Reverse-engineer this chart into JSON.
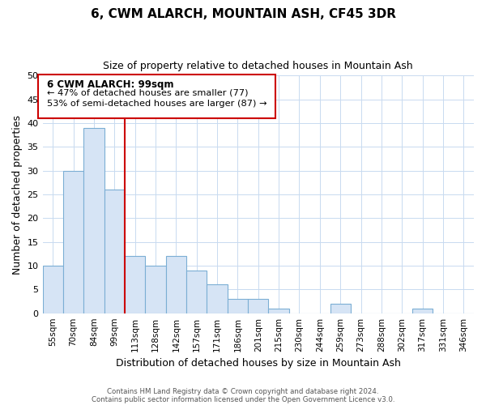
{
  "title": "6, CWM ALARCH, MOUNTAIN ASH, CF45 3DR",
  "subtitle": "Size of property relative to detached houses in Mountain Ash",
  "xlabel": "Distribution of detached houses by size in Mountain Ash",
  "ylabel": "Number of detached properties",
  "bin_labels": [
    "55sqm",
    "70sqm",
    "84sqm",
    "99sqm",
    "113sqm",
    "128sqm",
    "142sqm",
    "157sqm",
    "171sqm",
    "186sqm",
    "201sqm",
    "215sqm",
    "230sqm",
    "244sqm",
    "259sqm",
    "273sqm",
    "288sqm",
    "302sqm",
    "317sqm",
    "331sqm",
    "346sqm"
  ],
  "bar_heights": [
    10,
    30,
    39,
    26,
    12,
    10,
    12,
    9,
    6,
    3,
    3,
    1,
    0,
    0,
    2,
    0,
    0,
    0,
    1,
    0,
    0
  ],
  "bar_fill_color": "#d6e4f5",
  "bar_edge_color": "#7baed4",
  "highlight_line_color": "#cc0000",
  "highlight_line_index": 3,
  "ylim": [
    0,
    50
  ],
  "yticks": [
    0,
    5,
    10,
    15,
    20,
    25,
    30,
    35,
    40,
    45,
    50
  ],
  "ann_line1": "6 CWM ALARCH: 99sqm",
  "ann_line2": "← 47% of detached houses are smaller (77)",
  "ann_line3": "53% of semi-detached houses are larger (87) →",
  "footer_line1": "Contains HM Land Registry data © Crown copyright and database right 2024.",
  "footer_line2": "Contains public sector information licensed under the Open Government Licence v3.0.",
  "bg_color": "#ffffff",
  "grid_color": "#c8daf0",
  "title_fontsize": 11,
  "subtitle_fontsize": 9
}
